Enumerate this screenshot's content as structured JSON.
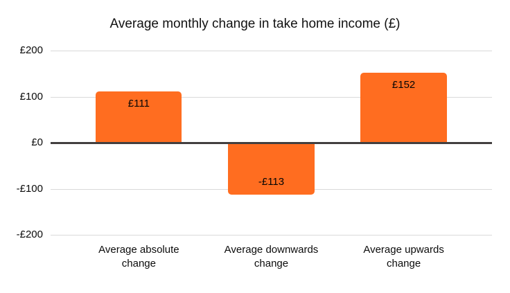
{
  "chart_data": {
    "type": "bar",
    "title": "Average monthly change in take home income (£)",
    "categories": [
      "Average absolute change",
      "Average downwards change",
      "Average upwards change"
    ],
    "values": [
      111,
      -113,
      152
    ],
    "bar_labels": [
      "£111",
      "-£113",
      "£152"
    ],
    "xlabel": "",
    "ylabel": "",
    "ylim": [
      -200,
      200
    ],
    "yticks": [
      {
        "value": 200,
        "label": "£200"
      },
      {
        "value": 100,
        "label": "£100"
      },
      {
        "value": 0,
        "label": "£0"
      },
      {
        "value": -100,
        "label": "-£100"
      },
      {
        "value": -200,
        "label": "-£200"
      }
    ],
    "grid": "horizontal",
    "legend": "none",
    "bar_color": "#ff6d20",
    "gridline_color": "#d9d9d9",
    "zero_line_color": "#433f3f",
    "text_color": "#0b0b0b"
  }
}
